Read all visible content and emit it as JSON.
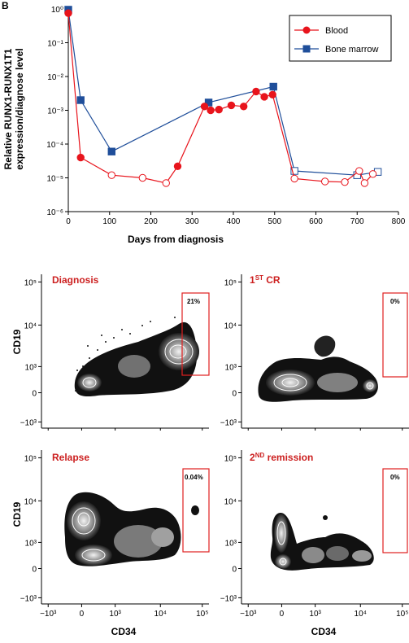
{
  "panel_letter": "B",
  "colors": {
    "blood": "#e8141c",
    "bone_marrow": "#1f4e9a",
    "gate": "#e01f1f",
    "title": "#cc1f1f"
  },
  "chart_data": [
    {
      "type": "line",
      "xlabel": "Days from diagnosis",
      "ylabel_line1": "Relative RUNX1-RUNX1T1",
      "ylabel_line2": "expression/diagnose level",
      "xlim": [
        0,
        800
      ],
      "ylim": [
        1e-06,
        1
      ],
      "y_scale": "log",
      "x_ticks": [
        "0",
        "100",
        "200",
        "300",
        "400",
        "500",
        "600",
        "700",
        "800"
      ],
      "y_ticks": [
        "10⁰",
        "10⁻¹",
        "10⁻²",
        "10⁻³",
        "10⁻⁴",
        "10⁻⁵",
        "10⁻⁶"
      ],
      "legend_position": "top-right",
      "series": [
        {
          "name": "Blood",
          "marker": "circle",
          "x": [
            0,
            30,
            105,
            180,
            237,
            265,
            330,
            345,
            365,
            395,
            425,
            455,
            475,
            495,
            548,
            622,
            670,
            705,
            718,
            738
          ],
          "y": [
            0.75,
            4e-05,
            1.2e-05,
            1e-05,
            7e-06,
            2.2e-05,
            0.0013,
            0.001,
            0.00105,
            0.0014,
            0.0013,
            0.0036,
            0.0025,
            0.0029,
            9.5e-06,
            7.8e-06,
            7.5e-06,
            1.6e-05,
            7e-06,
            1.3e-05
          ],
          "filled": [
            true,
            true,
            false,
            false,
            false,
            true,
            true,
            true,
            true,
            true,
            true,
            true,
            true,
            true,
            false,
            false,
            false,
            false,
            false,
            false
          ]
        },
        {
          "name": "Bone marrow",
          "marker": "square",
          "x": [
            0,
            30,
            105,
            340,
            497,
            548,
            700,
            750
          ],
          "y": [
            0.95,
            0.002,
            6e-05,
            0.0017,
            0.005,
            1.6e-05,
            1.2e-05,
            1.5e-05
          ],
          "filled": [
            true,
            true,
            true,
            true,
            true,
            false,
            false,
            false
          ]
        }
      ]
    },
    {
      "type": "heatmap",
      "xlabel": "CD34",
      "ylabel": "CD19",
      "x_ticks": [
        "−10³",
        "0",
        "10³",
        "10⁴",
        "10⁵"
      ],
      "y_ticks": [
        "10⁵",
        "10⁴",
        "10³",
        "0",
        "−10³"
      ],
      "panels": [
        {
          "title": "Diagnosis",
          "gate_percent": "21%"
        },
        {
          "title_main": "1",
          "title_sup": "ST",
          "title_rest": " CR",
          "gate_percent": "0%"
        },
        {
          "title": "Relapse",
          "gate_percent": "0.04%"
        },
        {
          "title_main": "2",
          "title_sup": "ND",
          "title_rest": " remission",
          "gate_percent": "0%"
        }
      ]
    }
  ]
}
